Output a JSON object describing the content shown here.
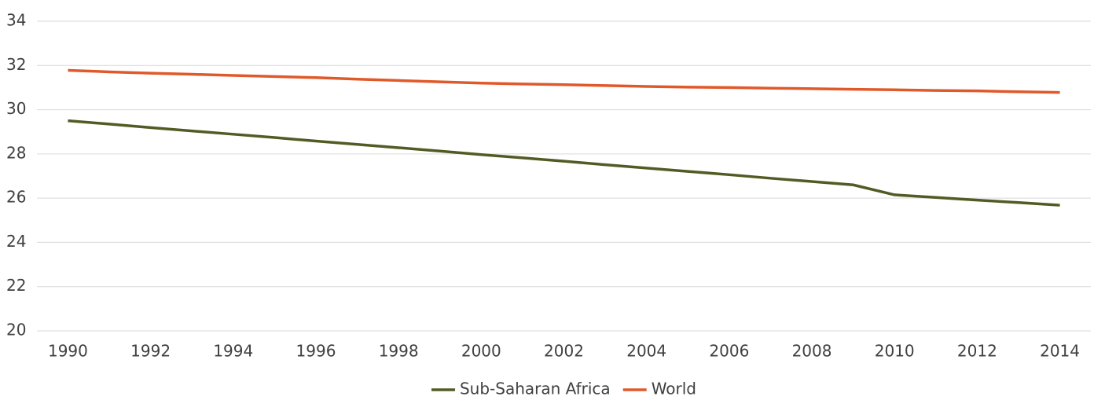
{
  "chart_data": {
    "type": "line",
    "x": [
      1990,
      1991,
      1992,
      1993,
      1994,
      1995,
      1996,
      1997,
      1998,
      1999,
      2000,
      2001,
      2002,
      2003,
      2004,
      2005,
      2006,
      2007,
      2008,
      2009,
      2010,
      2011,
      2012,
      2013,
      2014
    ],
    "series": [
      {
        "name": "Sub-Saharan Africa",
        "color": "#545a23",
        "values": [
          29.5,
          29.35,
          29.19,
          29.04,
          28.89,
          28.74,
          28.58,
          28.43,
          28.28,
          28.13,
          27.97,
          27.82,
          27.67,
          27.51,
          27.36,
          27.21,
          27.06,
          26.9,
          26.75,
          26.6,
          26.15,
          26.03,
          25.91,
          25.8,
          25.68
        ]
      },
      {
        "name": "World",
        "color": "#e0592a",
        "values": [
          31.78,
          31.71,
          31.65,
          31.6,
          31.55,
          31.5,
          31.45,
          31.38,
          31.32,
          31.26,
          31.2,
          31.16,
          31.13,
          31.09,
          31.05,
          31.02,
          31.0,
          30.97,
          30.95,
          30.92,
          30.9,
          30.87,
          30.85,
          30.81,
          30.78
        ]
      }
    ],
    "xlim": [
      1989.25,
      2014.75
    ],
    "xticks": [
      1990,
      1992,
      1994,
      1996,
      1998,
      2000,
      2002,
      2004,
      2006,
      2008,
      2010,
      2012,
      2014
    ],
    "ylim": [
      20,
      34
    ],
    "yticks": [
      20,
      22,
      24,
      26,
      28,
      30,
      32,
      34
    ],
    "grid": true,
    "legend": "bottom"
  }
}
